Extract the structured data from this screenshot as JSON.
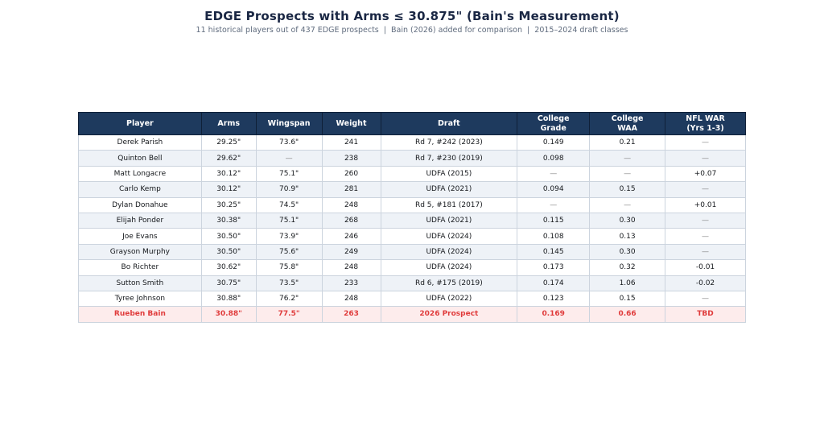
{
  "muted_marker": "—",
  "colors": {
    "header_bg": "#1e3a5e",
    "header_text": "#ffffff",
    "row_bg": "#ffffff",
    "row_alt_bg": "#eef2f7",
    "highlight_bg": "#fdecec",
    "highlight_text": "#e03c3c",
    "body_text": "#15181c",
    "muted_text": "#808080",
    "title_color": "#1a2744",
    "subtitle_color": "#5f6b7d"
  },
  "chart_data": {
    "type": "table",
    "title": "EDGE Prospects with Arms ≤ 30.875\" (Bain's Measurement)",
    "subtitle": "11 historical players out of 437 EDGE prospects  |  Bain (2026) added for comparison  |  2015–2024 draft classes",
    "grid": false,
    "legend_position": "none",
    "columns": [
      {
        "label": "Player",
        "width_pct": 18.43
      },
      {
        "label": "Arms",
        "width_pct": 8.19
      },
      {
        "label": "Wingspan",
        "width_pct": 9.88
      },
      {
        "label": "Weight",
        "width_pct": 8.8
      },
      {
        "label": "Draft",
        "width_pct": 20.48
      },
      {
        "label": "College\nGrade",
        "width_pct": 10.84
      },
      {
        "label": "College\nWAA",
        "width_pct": 11.33
      },
      {
        "label": "NFL WAR\n(Yrs 1-3)",
        "width_pct": 12.05
      }
    ],
    "rows": [
      {
        "highlight": false,
        "cells": [
          "Derek Parish",
          "29.25\"",
          "73.6\"",
          "241",
          "Rd 7, #242 (2023)",
          "0.149",
          "0.21",
          "—"
        ]
      },
      {
        "highlight": false,
        "cells": [
          "Quinton Bell",
          "29.62\"",
          "—",
          "238",
          "Rd 7, #230 (2019)",
          "0.098",
          "—",
          "—"
        ]
      },
      {
        "highlight": false,
        "cells": [
          "Matt Longacre",
          "30.12\"",
          "75.1\"",
          "260",
          "UDFA (2015)",
          "—",
          "—",
          "+0.07"
        ]
      },
      {
        "highlight": false,
        "cells": [
          "Carlo Kemp",
          "30.12\"",
          "70.9\"",
          "281",
          "UDFA (2021)",
          "0.094",
          "0.15",
          "—"
        ]
      },
      {
        "highlight": false,
        "cells": [
          "Dylan Donahue",
          "30.25\"",
          "74.5\"",
          "248",
          "Rd 5, #181 (2017)",
          "—",
          "—",
          "+0.01"
        ]
      },
      {
        "highlight": false,
        "cells": [
          "Elijah Ponder",
          "30.38\"",
          "75.1\"",
          "268",
          "UDFA (2021)",
          "0.115",
          "0.30",
          "—"
        ]
      },
      {
        "highlight": false,
        "cells": [
          "Joe Evans",
          "30.50\"",
          "73.9\"",
          "246",
          "UDFA (2024)",
          "0.108",
          "0.13",
          "—"
        ]
      },
      {
        "highlight": false,
        "cells": [
          "Grayson Murphy",
          "30.50\"",
          "75.6\"",
          "249",
          "UDFA (2024)",
          "0.145",
          "0.30",
          "—"
        ]
      },
      {
        "highlight": false,
        "cells": [
          "Bo Richter",
          "30.62\"",
          "75.8\"",
          "248",
          "UDFA (2024)",
          "0.173",
          "0.32",
          "-0.01"
        ]
      },
      {
        "highlight": false,
        "cells": [
          "Sutton Smith",
          "30.75\"",
          "73.5\"",
          "233",
          "Rd 6, #175 (2019)",
          "0.174",
          "1.06",
          "-0.02"
        ]
      },
      {
        "highlight": false,
        "cells": [
          "Tyree Johnson",
          "30.88\"",
          "76.2\"",
          "248",
          "UDFA (2022)",
          "0.123",
          "0.15",
          "—"
        ]
      },
      {
        "highlight": true,
        "cells": [
          "Rueben Bain",
          "30.88\"",
          "77.5\"",
          "263",
          "2026 Prospect",
          "0.169",
          "0.66",
          "TBD"
        ]
      }
    ]
  }
}
